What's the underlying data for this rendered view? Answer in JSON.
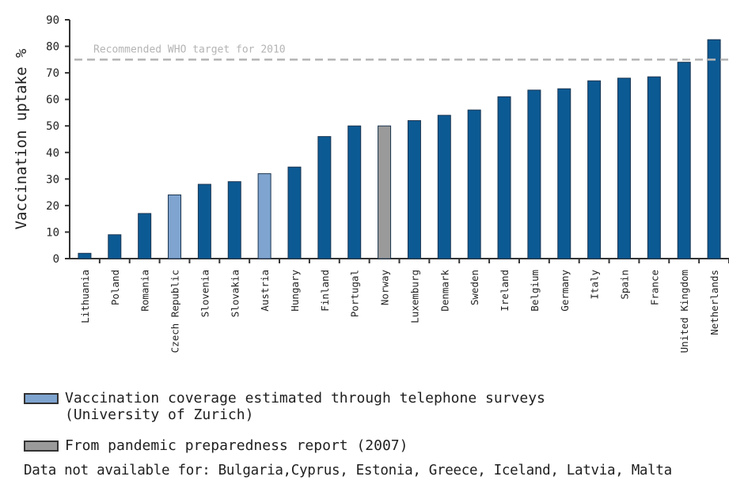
{
  "chart_data": {
    "type": "bar",
    "ylabel": "Vaccination uptake %",
    "ylim": [
      0,
      90
    ],
    "yticks": [
      0,
      10,
      20,
      30,
      40,
      50,
      60,
      70,
      80,
      90
    ],
    "grid": false,
    "categories": [
      "Lithuania",
      "Poland",
      "Romania",
      "Czech Republic",
      "Slovenia",
      "Slovakia",
      "Austria",
      "Hungary",
      "Finland",
      "Portugal",
      "Norway",
      "Luxemburg",
      "Denmark",
      "Sweden",
      "Ireland",
      "Belgium",
      "Germany",
      "Italy",
      "Spain",
      "France",
      "United Kingdom",
      "Netherlands"
    ],
    "values": [
      2,
      9,
      17,
      24,
      28,
      29,
      32,
      34.5,
      46,
      50,
      50,
      52,
      54,
      56,
      61,
      63.5,
      64,
      67,
      68,
      68.5,
      74,
      82.5
    ],
    "bar_source": [
      "standard",
      "standard",
      "standard",
      "telephone",
      "standard",
      "standard",
      "telephone",
      "standard",
      "standard",
      "standard",
      "report",
      "standard",
      "standard",
      "standard",
      "standard",
      "standard",
      "standard",
      "standard",
      "standard",
      "standard",
      "standard",
      "standard"
    ],
    "reference_line": {
      "value": 75,
      "label": "Recommended WHO target for 2010",
      "style": "dashed"
    },
    "colors": {
      "standard": "#0c5a94",
      "telephone": "#7ea4cf",
      "report": "#9a9a9a",
      "reference": "#b4b4b4",
      "axis": "#333333"
    }
  },
  "legend": {
    "items": [
      {
        "label": "Vaccination coverage estimated through telephone surveys\n(University of Zurich)",
        "color": "#7ea4cf"
      },
      {
        "label": "From pandemic preparedness report (2007)",
        "color": "#9a9a9a"
      }
    ],
    "note": "Data not available for: Bulgaria,Cyprus, Estonia, Greece, Iceland, Latvia, Malta"
  }
}
